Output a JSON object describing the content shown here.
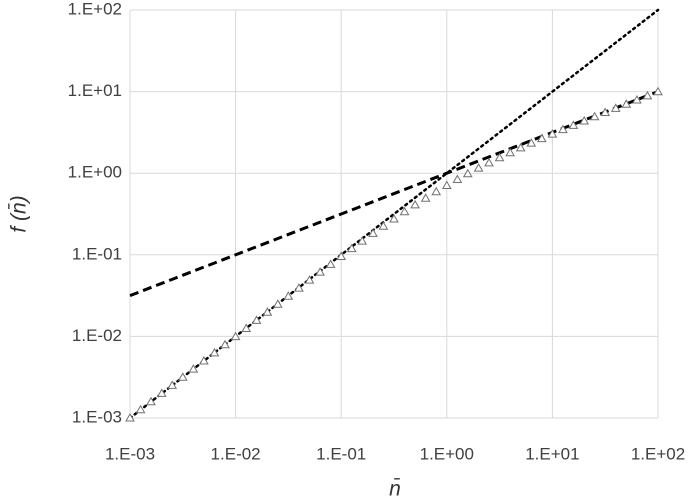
{
  "chart_data": {
    "type": "line",
    "x_label": "n̄",
    "y_label": "f (n̄)",
    "log_x": true,
    "log_y": true,
    "grid": true,
    "xlim": [
      0.001,
      100
    ],
    "ylim": [
      0.001,
      100
    ],
    "xticks": [
      {
        "value": 0.001,
        "label": "1.E-03"
      },
      {
        "value": 0.01,
        "label": "1.E-02"
      },
      {
        "value": 0.1,
        "label": "1.E-01"
      },
      {
        "value": 1,
        "label": "1.E+00"
      },
      {
        "value": 10,
        "label": "1.E+01"
      },
      {
        "value": 100,
        "label": "1.E+02"
      }
    ],
    "yticks": [
      {
        "value": 0.001,
        "label": "1.E-03"
      },
      {
        "value": 0.01,
        "label": "1.E-02"
      },
      {
        "value": 0.1,
        "label": "1.E-01"
      },
      {
        "value": 1,
        "label": "1.E+00"
      },
      {
        "value": 10,
        "label": "1.E+01"
      },
      {
        "value": 100,
        "label": "1.E+02"
      }
    ],
    "series": [
      {
        "color": "#000000",
        "line_style": "dotted",
        "x": [
          0.001,
          100
        ],
        "values": [
          0.001,
          100
        ]
      },
      {
        "color": "#000000",
        "line_style": "dashed",
        "x": [
          0.001,
          100
        ],
        "values": [
          0.0316,
          10
        ]
      },
      {
        "color": "#707070",
        "line_style": "none",
        "marker": "triangle",
        "x": [
          0.001,
          0.00126,
          0.00158,
          0.002,
          0.00251,
          0.00316,
          0.00398,
          0.00501,
          0.00631,
          0.00794,
          0.01,
          0.0126,
          0.0158,
          0.02,
          0.0251,
          0.0316,
          0.0398,
          0.0501,
          0.0631,
          0.0794,
          0.1,
          0.126,
          0.158,
          0.2,
          0.251,
          0.316,
          0.398,
          0.501,
          0.631,
          0.794,
          1,
          1.26,
          1.58,
          2,
          2.51,
          3.16,
          3.98,
          5.01,
          6.31,
          7.94,
          10,
          12.6,
          15.8,
          20,
          25.1,
          31.6,
          39.8,
          50.1,
          63.1,
          79.4,
          100
        ],
        "values": [
          0.001,
          0.00126,
          0.00158,
          0.002,
          0.00251,
          0.00316,
          0.00397,
          0.005,
          0.00629,
          0.00791,
          0.00995,
          0.0125,
          0.0157,
          0.0198,
          0.0248,
          0.0311,
          0.039,
          0.0489,
          0.0613,
          0.0764,
          0.0953,
          0.119,
          0.147,
          0.183,
          0.224,
          0.275,
          0.337,
          0.409,
          0.494,
          0.593,
          0.707,
          0.838,
          0.984,
          1.155,
          1.34,
          1.549,
          1.783,
          2.044,
          2.334,
          2.656,
          3.015,
          3.417,
          3.855,
          4.364,
          4.913,
          5.535,
          6.231,
          7.009,
          7.881,
          8.855,
          9.95
        ]
      }
    ]
  }
}
